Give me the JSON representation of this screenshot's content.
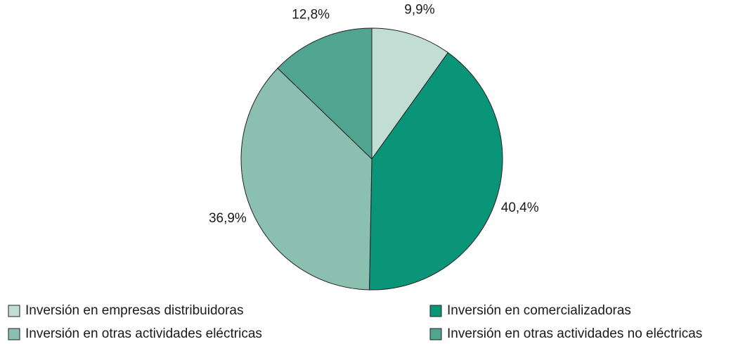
{
  "chart_data": {
    "type": "pie",
    "categories": [
      "Inversión en empresas distribuidoras",
      "Inversión en comercializadoras",
      "Inversión en otras actividades eléctricas",
      "Inversión en otras actividades no eléctricas"
    ],
    "values": [
      9.9,
      40.4,
      36.9,
      12.8
    ],
    "value_labels": [
      "9,9%",
      "40,4%",
      "36,9%",
      "12,8%"
    ],
    "colors": [
      "#c1ddd4",
      "#0a9478",
      "#8bbfb0",
      "#4fa590"
    ]
  }
}
